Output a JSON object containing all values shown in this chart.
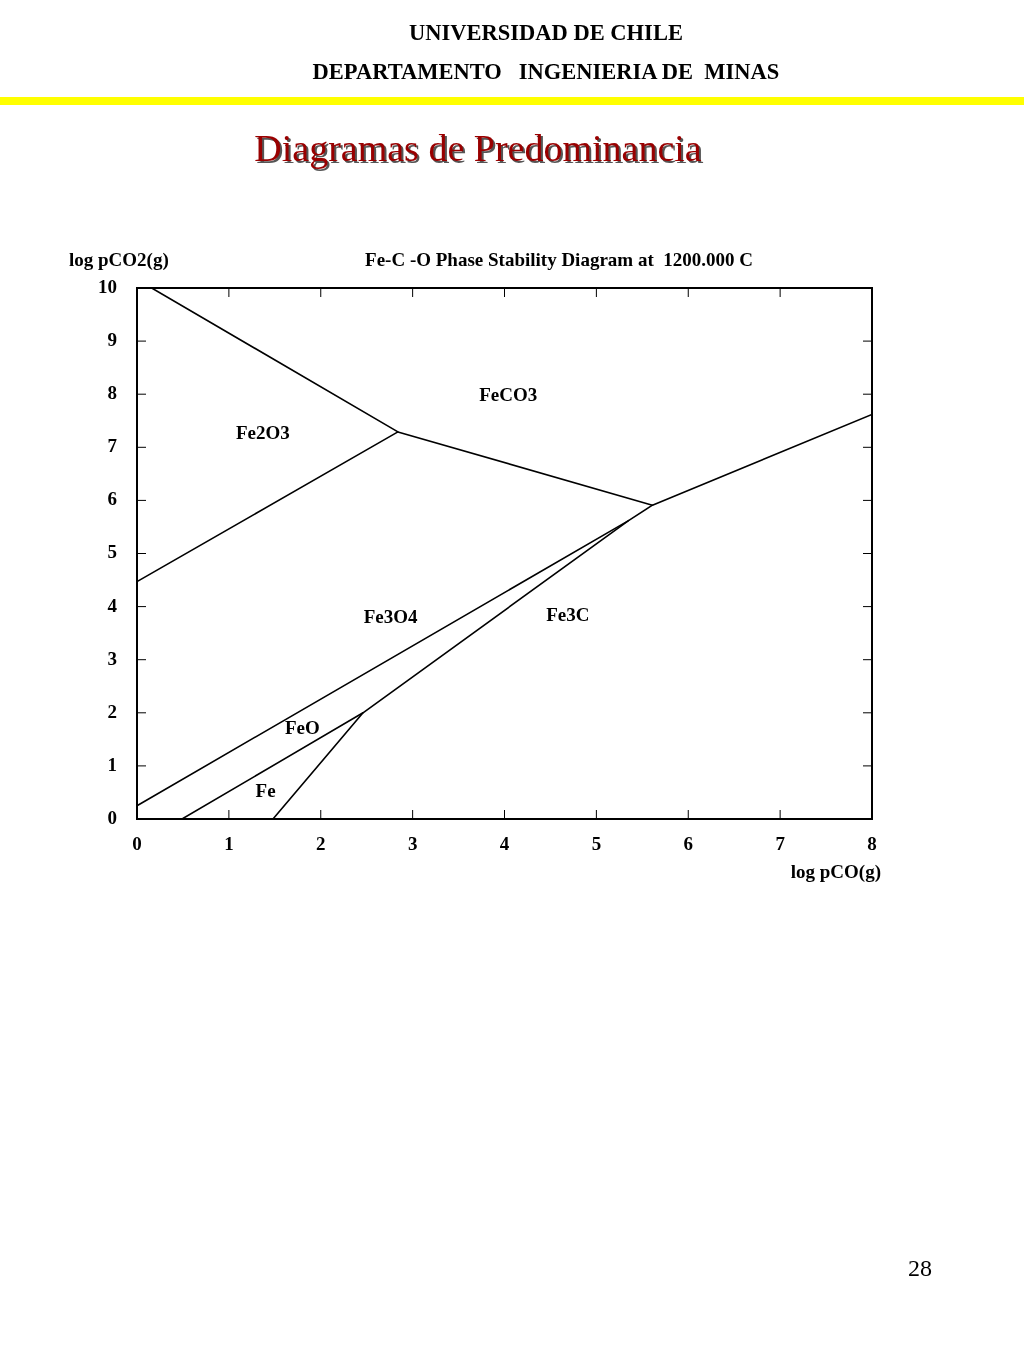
{
  "chart_data": {
    "type": "line",
    "title": "Diagramas de Predominancia",
    "subtitle": "Fe-C -O Phase Stability Diagram at  1200.000 C",
    "xlabel": "log pCO(g)",
    "ylabel": "log pCO2(g)",
    "series": [
      {
        "color": "#000000",
        "x": [
          0.16,
          2.84,
          5.61
        ],
        "values": [
          10,
          7.29,
          5.91
        ]
      },
      {
        "color": "#000000",
        "x": [
          0,
          2.84
        ],
        "values": [
          4.47,
          7.29
        ]
      },
      {
        "color": "#000000",
        "x": [
          0,
          5.35,
          5.61,
          8
        ],
        "values": [
          0.25,
          5.62,
          5.91,
          7.62
        ]
      },
      {
        "color": "#000000",
        "x": [
          0.49,
          2.46,
          5.35
        ],
        "values": [
          0,
          2.0,
          5.62
        ]
      },
      {
        "color": "#000000",
        "x": [
          1.48,
          2.46
        ],
        "values": [
          0,
          2.0
        ]
      }
    ],
    "xlim": [
      0,
      8
    ],
    "xticks": [
      0,
      1,
      2,
      3,
      4,
      5,
      6,
      7,
      8
    ],
    "ylim": [
      0,
      10
    ],
    "yticks": [
      0,
      1,
      2,
      3,
      4,
      5,
      6,
      7,
      8,
      9,
      10
    ],
    "marker": "none",
    "annotations": [
      "UNIVERSIDAD DE CHILE",
      "DEPARTAMENTO   INGENIERIA DE  MINAS",
      "Fe2O3",
      "FeCO3",
      "Fe3O4",
      "Fe3C",
      "FeO",
      "Fe",
      "28"
    ]
  }
}
